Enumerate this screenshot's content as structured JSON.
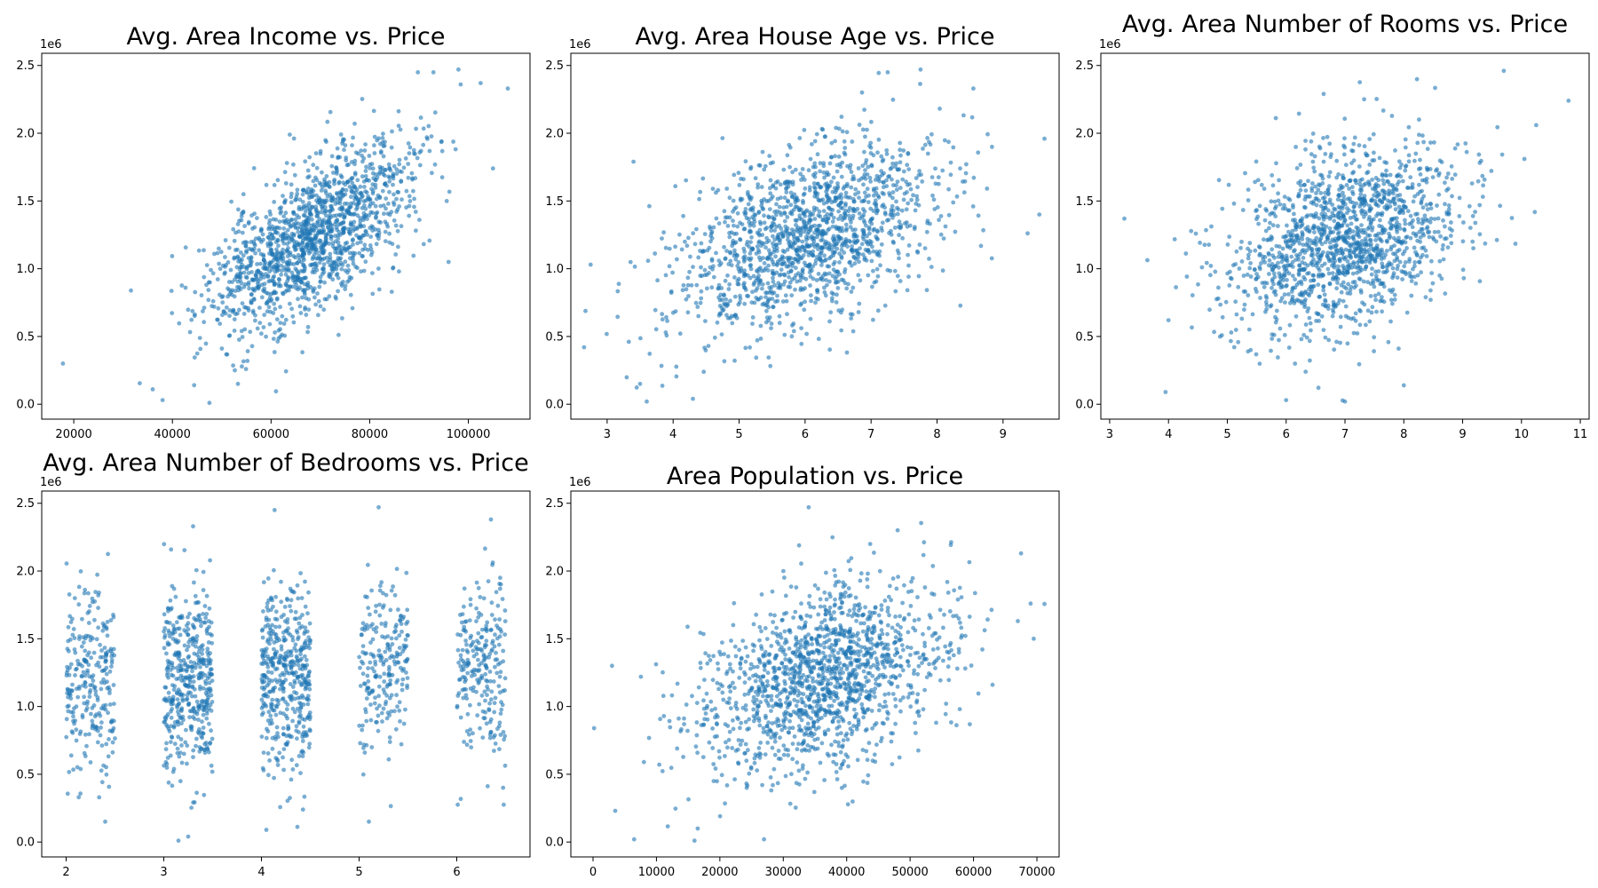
{
  "figure": {
    "point_color": "#1f77b4",
    "point_opacity": 0.6
  },
  "chart_data": [
    {
      "type": "scatter",
      "title": "Avg. Area Income vs. Price",
      "xlim": [
        13500,
        112500
      ],
      "ylim": [
        -110000,
        2590000
      ],
      "xticks": [
        20000,
        40000,
        60000,
        80000,
        100000
      ],
      "xtick_labels": [
        "20000",
        "40000",
        "60000",
        "80000",
        "100000"
      ],
      "yticks": [
        0,
        500000,
        1000000,
        1500000,
        2000000,
        2500000
      ],
      "ytick_labels": [
        "0.0",
        "0.5",
        "1.0",
        "1.5",
        "2.0",
        "2.5"
      ],
      "y_offset_label": "1e6",
      "cloud": {
        "count": 1500,
        "seed": 11,
        "x_mean": 68000,
        "x_sd": 10500,
        "y_mean": 1230000,
        "y_sd": 350000,
        "corr": 0.64
      },
      "points": [
        [
          17800,
          300000
        ],
        [
          36000,
          110000
        ],
        [
          38000,
          30000
        ],
        [
          47500,
          10000
        ],
        [
          61000,
          95000
        ],
        [
          108000,
          2330000
        ],
        [
          98000,
          2470000
        ],
        [
          102500,
          2370000
        ],
        [
          96000,
          1050000
        ],
        [
          105000,
          1740000
        ]
      ]
    },
    {
      "type": "scatter",
      "title": "Avg. Area House Age vs. Price",
      "xlim": [
        2.45,
        9.85
      ],
      "ylim": [
        -110000,
        2590000
      ],
      "xticks": [
        3,
        4,
        5,
        6,
        7,
        8,
        9
      ],
      "xtick_labels": [
        "3",
        "4",
        "5",
        "6",
        "7",
        "8",
        "9"
      ],
      "yticks": [
        0,
        500000,
        1000000,
        1500000,
        2000000,
        2500000
      ],
      "ytick_labels": [
        "0.0",
        "0.5",
        "1.0",
        "1.5",
        "2.0",
        "2.5"
      ],
      "y_offset_label": "1e6",
      "cloud": {
        "count": 1500,
        "seed": 23,
        "x_mean": 6.0,
        "x_sd": 0.99,
        "y_mean": 1230000,
        "y_sd": 350000,
        "corr": 0.45
      },
      "points": [
        [
          2.65,
          420000
        ],
        [
          2.75,
          1030000
        ],
        [
          3.4,
          1790000
        ],
        [
          3.5,
          150000
        ],
        [
          3.6,
          20000
        ],
        [
          4.3,
          40000
        ],
        [
          7.75,
          2470000
        ],
        [
          9.55,
          1400000
        ],
        [
          8.55,
          2330000
        ]
      ]
    },
    {
      "type": "scatter",
      "title": "Avg. Area Number of Rooms vs. Price",
      "xlim": [
        2.85,
        11.15
      ],
      "ylim": [
        -110000,
        2590000
      ],
      "xticks": [
        3,
        4,
        5,
        6,
        7,
        8,
        9,
        10,
        11
      ],
      "xtick_labels": [
        "3",
        "4",
        "5",
        "6",
        "7",
        "8",
        "9",
        "10",
        "11"
      ],
      "yticks": [
        0,
        500000,
        1000000,
        1500000,
        2000000,
        2500000
      ],
      "ytick_labels": [
        "0.0",
        "0.5",
        "1.0",
        "1.5",
        "2.0",
        "2.5"
      ],
      "y_offset_label": "1e6",
      "cloud": {
        "count": 1500,
        "seed": 37,
        "x_mean": 7.0,
        "x_sd": 1.0,
        "y_mean": 1230000,
        "y_sd": 350000,
        "corr": 0.34
      },
      "points": [
        [
          3.25,
          1370000
        ],
        [
          3.95,
          90000
        ],
        [
          4.0,
          620000
        ],
        [
          7.0,
          20000
        ],
        [
          9.7,
          2460000
        ],
        [
          10.8,
          2240000
        ],
        [
          10.25,
          2060000
        ],
        [
          10.05,
          1810000
        ],
        [
          6.0,
          30000
        ],
        [
          8.0,
          140000
        ]
      ]
    },
    {
      "type": "scatter",
      "title": "Avg. Area Number of Bedrooms vs. Price",
      "xlim": [
        1.75,
        6.75
      ],
      "ylim": [
        -110000,
        2590000
      ],
      "xticks": [
        2,
        3,
        4,
        5,
        6
      ],
      "xtick_labels": [
        "2",
        "3",
        "4",
        "5",
        "6"
      ],
      "yticks": [
        0,
        500000,
        1000000,
        1500000,
        2000000,
        2500000
      ],
      "ytick_labels": [
        "0.0",
        "0.5",
        "1.0",
        "1.5",
        "2.0",
        "2.5"
      ],
      "y_offset_label": "1e6",
      "strips": [
        {
          "x_from": 2.0,
          "x_to": 2.5,
          "count": 260,
          "y_mean": 1180000,
          "y_sd": 330000
        },
        {
          "x_from": 3.0,
          "x_to": 3.5,
          "count": 440,
          "y_mean": 1220000,
          "y_sd": 350000
        },
        {
          "x_from": 4.0,
          "x_to": 4.5,
          "count": 440,
          "y_mean": 1200000,
          "y_sd": 350000
        },
        {
          "x_from": 5.0,
          "x_to": 5.5,
          "count": 220,
          "y_mean": 1270000,
          "y_sd": 340000
        },
        {
          "x_from": 6.0,
          "x_to": 6.5,
          "count": 240,
          "y_mean": 1280000,
          "y_sd": 340000
        }
      ],
      "seed": 51,
      "points": [
        [
          3.15,
          10000
        ],
        [
          3.25,
          40000
        ],
        [
          4.05,
          90000
        ],
        [
          5.1,
          150000
        ],
        [
          5.2,
          2470000
        ],
        [
          6.35,
          2380000
        ],
        [
          2.4,
          150000
        ],
        [
          3.3,
          2330000
        ]
      ]
    },
    {
      "type": "scatter",
      "title": "Area Population vs. Price",
      "xlim": [
        -3500,
        73500
      ],
      "ylim": [
        -110000,
        2590000
      ],
      "xticks": [
        0,
        10000,
        20000,
        30000,
        40000,
        50000,
        60000,
        70000
      ],
      "xtick_labels": [
        "0",
        "10000",
        "20000",
        "30000",
        "40000",
        "50000",
        "60000",
        "70000"
      ],
      "yticks": [
        0,
        500000,
        1000000,
        1500000,
        2000000,
        2500000
      ],
      "ytick_labels": [
        "0.0",
        "0.5",
        "1.0",
        "1.5",
        "2.0",
        "2.5"
      ],
      "y_offset_label": "1e6",
      "cloud": {
        "count": 1500,
        "seed": 67,
        "x_mean": 36500,
        "x_sd": 9900,
        "y_mean": 1230000,
        "y_sd": 350000,
        "corr": 0.41
      },
      "points": [
        [
          170,
          840000
        ],
        [
          3000,
          1300000
        ],
        [
          3500,
          230000
        ],
        [
          16000,
          10000
        ],
        [
          34000,
          2470000
        ],
        [
          69500,
          1500000
        ],
        [
          69000,
          1760000
        ],
        [
          67500,
          2130000
        ],
        [
          63000,
          1160000
        ],
        [
          16500,
          100000
        ]
      ]
    }
  ]
}
